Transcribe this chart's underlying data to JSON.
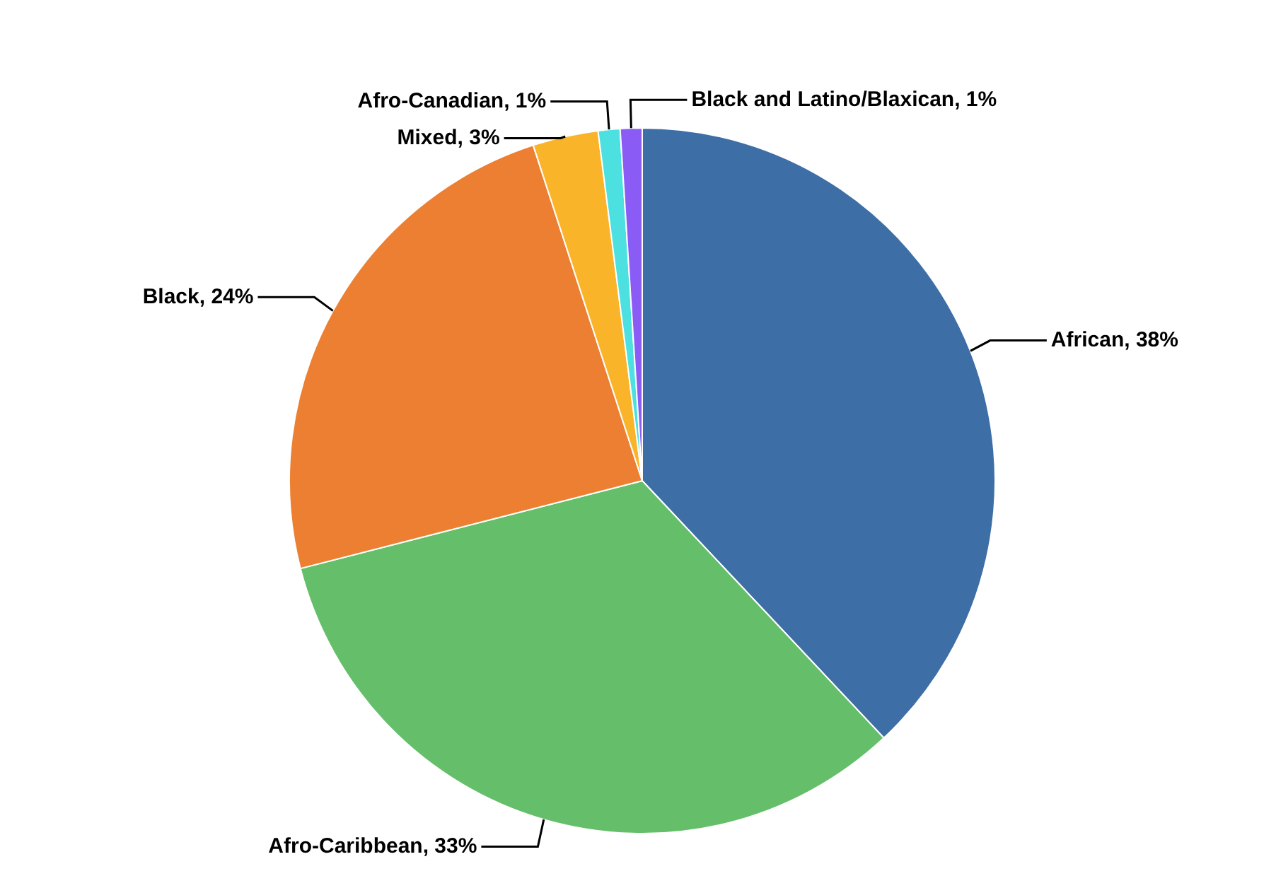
{
  "chart_data": {
    "type": "pie",
    "categories": [
      "African",
      "Afro-Caribbean",
      "Black",
      "Mixed",
      "Afro-Canadian",
      "Black and Latino/Blaxican"
    ],
    "values": [
      38,
      33,
      24,
      3,
      1,
      1
    ],
    "value_labels": [
      "38%",
      "33%",
      "24%",
      "3%",
      "1%",
      "1%"
    ],
    "colors": [
      "#3d6ea5",
      "#65bf6a",
      "#ec7f31",
      "#f9b42a",
      "#4de0e0",
      "#8a5cf5"
    ],
    "legend": false
  }
}
